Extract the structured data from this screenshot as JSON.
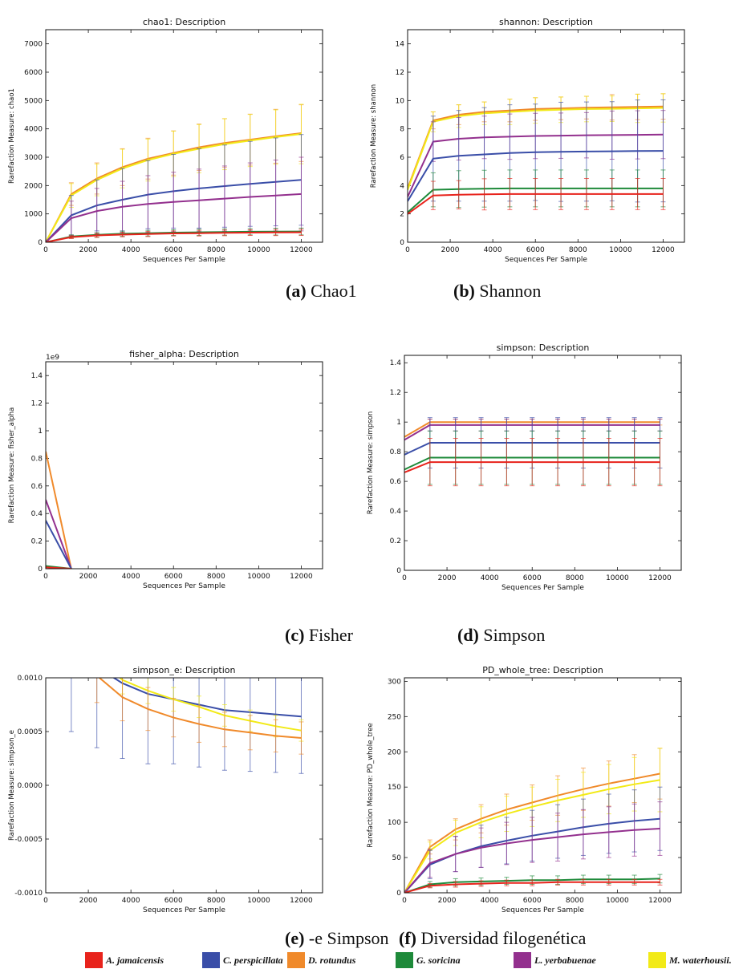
{
  "legend": [
    {
      "name": "A. jamaicensis",
      "color": "#e8231c"
    },
    {
      "name": "C. perspicillata",
      "color": "#3a4ea8"
    },
    {
      "name": "D. rotundus",
      "color": "#f08a2b"
    },
    {
      "name": "G. soricina",
      "color": "#1e8a3a"
    },
    {
      "name": "L. yerbabuenae",
      "color": "#93308e"
    },
    {
      "name": "M. waterhousii.",
      "color": "#f2ea17"
    }
  ],
  "captions": [
    {
      "tag": "(a)",
      "text": "Chao1"
    },
    {
      "tag": "(b)",
      "text": "Shannon"
    },
    {
      "tag": "(c)",
      "text": "Fisher"
    },
    {
      "tag": "(d)",
      "text": "Simpson"
    },
    {
      "tag": "(e)",
      "text": "-e Simpson"
    },
    {
      "tag": "(f)",
      "text": "Diversidad filogenética"
    }
  ],
  "chart_data": [
    {
      "type": "line",
      "title": "chao1: Description",
      "xlabel": "Sequences Per Sample",
      "ylabel": "Rarefaction Measure: chao1",
      "xlim": [
        0,
        13000
      ],
      "ylim": [
        0,
        7500
      ],
      "xticks": [
        0,
        2000,
        4000,
        6000,
        8000,
        10000,
        12000
      ],
      "yticks": [
        0,
        1000,
        2000,
        3000,
        4000,
        5000,
        6000,
        7000
      ],
      "x": [
        0,
        1200,
        2400,
        3600,
        4800,
        6000,
        7200,
        8400,
        9600,
        10800,
        12000
      ],
      "series": [
        {
          "name": "D. rotundus",
          "color": "#f08a2b",
          "values": [
            0,
            1700,
            2250,
            2650,
            2950,
            3150,
            3350,
            3500,
            3620,
            3740,
            3850
          ],
          "err": [
            0,
            400,
            550,
            650,
            720,
            780,
            820,
            860,
            900,
            950,
            1000
          ]
        },
        {
          "name": "M. waterhousii.",
          "color": "#f2ea17",
          "values": [
            0,
            1650,
            2200,
            2600,
            2900,
            3120,
            3300,
            3460,
            3590,
            3710,
            3820
          ],
          "err": [
            0,
            420,
            560,
            680,
            740,
            800,
            850,
            900,
            920,
            960,
            1050
          ]
        },
        {
          "name": "C. perspicillata",
          "color": "#3a4ea8",
          "values": [
            0,
            950,
            1300,
            1500,
            1680,
            1800,
            1900,
            1980,
            2060,
            2130,
            2200
          ],
          "err": [
            0,
            700,
            900,
            1100,
            1200,
            1300,
            1400,
            1450,
            1500,
            1550,
            1600
          ]
        },
        {
          "name": "L. yerbabuenae",
          "color": "#93308e",
          "values": [
            0,
            850,
            1100,
            1250,
            1350,
            1420,
            1480,
            1540,
            1600,
            1650,
            1700
          ],
          "err": [
            0,
            600,
            800,
            900,
            1000,
            1050,
            1100,
            1150,
            1200,
            1250,
            1300
          ]
        },
        {
          "name": "G. soricina",
          "color": "#1e8a3a",
          "values": [
            0,
            200,
            260,
            300,
            320,
            340,
            350,
            360,
            370,
            375,
            380
          ],
          "err": [
            0,
            60,
            80,
            90,
            100,
            100,
            110,
            110,
            110,
            120,
            120
          ]
        },
        {
          "name": "A. jamaicensis",
          "color": "#e8231c",
          "values": [
            0,
            180,
            240,
            270,
            290,
            310,
            320,
            330,
            340,
            345,
            350
          ],
          "err": [
            0,
            50,
            70,
            80,
            90,
            90,
            100,
            100,
            100,
            110,
            110
          ]
        }
      ]
    },
    {
      "type": "line",
      "title": "shannon: Description",
      "xlabel": "Sequences Per Sample",
      "ylabel": "Rarefaction Measure: shannon",
      "xlim": [
        0,
        13000
      ],
      "ylim": [
        0,
        15
      ],
      "xticks": [
        0,
        2000,
        4000,
        6000,
        8000,
        10000,
        12000
      ],
      "yticks": [
        0,
        2,
        4,
        6,
        8,
        10,
        12,
        14
      ],
      "x": [
        0,
        1200,
        2400,
        3600,
        4800,
        6000,
        7200,
        8400,
        9600,
        10800,
        12000
      ],
      "series": [
        {
          "name": "D. rotundus",
          "color": "#f08a2b",
          "values": [
            3.8,
            8.6,
            9.0,
            9.2,
            9.3,
            9.4,
            9.45,
            9.5,
            9.52,
            9.55,
            9.58
          ],
          "err": [
            0,
            0.6,
            0.7,
            0.7,
            0.8,
            0.8,
            0.8,
            0.8,
            0.9,
            0.9,
            0.9
          ]
        },
        {
          "name": "M. waterhousii.",
          "color": "#f2ea17",
          "values": [
            3.7,
            8.5,
            8.9,
            9.1,
            9.2,
            9.3,
            9.35,
            9.4,
            9.42,
            9.45,
            9.48
          ],
          "err": [
            0,
            0.7,
            0.8,
            0.8,
            0.9,
            0.9,
            0.9,
            0.9,
            0.9,
            1.0,
            1.0
          ]
        },
        {
          "name": "L. yerbabuenae",
          "color": "#93308e",
          "values": [
            3.2,
            7.1,
            7.3,
            7.4,
            7.45,
            7.5,
            7.52,
            7.55,
            7.56,
            7.58,
            7.6
          ],
          "err": [
            0,
            1.4,
            1.5,
            1.5,
            1.6,
            1.6,
            1.6,
            1.6,
            1.7,
            1.7,
            1.7
          ]
        },
        {
          "name": "C. perspicillata",
          "color": "#3a4ea8",
          "values": [
            2.9,
            5.9,
            6.1,
            6.2,
            6.3,
            6.35,
            6.38,
            6.4,
            6.42,
            6.44,
            6.45
          ],
          "err": [
            0,
            3.0,
            3.2,
            3.3,
            3.4,
            3.4,
            3.5,
            3.5,
            3.5,
            3.6,
            3.6
          ]
        },
        {
          "name": "G. soricina",
          "color": "#1e8a3a",
          "values": [
            2.1,
            3.7,
            3.75,
            3.78,
            3.8,
            3.8,
            3.8,
            3.8,
            3.8,
            3.8,
            3.8
          ],
          "err": [
            0,
            1.2,
            1.3,
            1.3,
            1.3,
            1.3,
            1.3,
            1.3,
            1.3,
            1.3,
            1.3
          ]
        },
        {
          "name": "A. jamaicensis",
          "color": "#e8231c",
          "values": [
            2.0,
            3.3,
            3.35,
            3.38,
            3.4,
            3.4,
            3.4,
            3.4,
            3.4,
            3.4,
            3.4
          ],
          "err": [
            0,
            1.0,
            1.0,
            1.1,
            1.1,
            1.1,
            1.1,
            1.1,
            1.1,
            1.1,
            1.1
          ]
        }
      ]
    },
    {
      "type": "line",
      "title": "fisher_alpha: Description",
      "xlabel": "Sequences Per Sample",
      "ylabel": "Rarefaction Measure: fisher_alpha",
      "offset_label": "1e9",
      "xlim": [
        0,
        13000
      ],
      "ylim": [
        0,
        1.5
      ],
      "xticks": [
        0,
        2000,
        4000,
        6000,
        8000,
        10000,
        12000
      ],
      "yticks": [
        0.0,
        0.2,
        0.4,
        0.6,
        0.8,
        1.0,
        1.2,
        1.4
      ],
      "x": [
        0,
        1200
      ],
      "series": [
        {
          "name": "D. rotundus",
          "color": "#f08a2b",
          "values": [
            0.85,
            0
          ],
          "err": [
            0,
            0
          ]
        },
        {
          "name": "L. yerbabuenae",
          "color": "#93308e",
          "values": [
            0.5,
            0
          ],
          "err": [
            0,
            0
          ]
        },
        {
          "name": "C. perspicillata",
          "color": "#3a4ea8",
          "values": [
            0.35,
            0
          ],
          "err": [
            0,
            0
          ]
        },
        {
          "name": "G. soricina",
          "color": "#1e8a3a",
          "values": [
            0.02,
            0
          ],
          "err": [
            0,
            0
          ]
        },
        {
          "name": "A. jamaicensis",
          "color": "#e8231c",
          "values": [
            0.01,
            0
          ],
          "err": [
            0,
            0
          ]
        }
      ]
    },
    {
      "type": "line",
      "title": "simpson: Description",
      "xlabel": "Sequences Per Sample",
      "ylabel": "Rarefaction Measure: simpson",
      "xlim": [
        0,
        13000
      ],
      "ylim": [
        0,
        1.45
      ],
      "xticks": [
        0,
        2000,
        4000,
        6000,
        8000,
        10000,
        12000
      ],
      "yticks": [
        0.0,
        0.2,
        0.4,
        0.6,
        0.8,
        1.0,
        1.2,
        1.4
      ],
      "x": [
        0,
        1200,
        2400,
        3600,
        4800,
        6000,
        7200,
        8400,
        9600,
        10800,
        12000
      ],
      "series": [
        {
          "name": "D. rotundus",
          "color": "#f08a2b",
          "values": [
            0.9,
            1.0,
            1.0,
            1.0,
            1.0,
            1.0,
            1.0,
            1.0,
            1.0,
            1.0,
            1.0
          ],
          "err": [
            0,
            0.02,
            0.02,
            0.02,
            0.02,
            0.02,
            0.02,
            0.02,
            0.02,
            0.02,
            0.02
          ]
        },
        {
          "name": "L. yerbabuenae",
          "color": "#93308e",
          "values": [
            0.88,
            0.98,
            0.98,
            0.98,
            0.98,
            0.98,
            0.98,
            0.98,
            0.98,
            0.98,
            0.98
          ],
          "err": [
            0,
            0.04,
            0.04,
            0.04,
            0.04,
            0.04,
            0.04,
            0.04,
            0.04,
            0.04,
            0.04
          ]
        },
        {
          "name": "C. perspicillata",
          "color": "#3a4ea8",
          "values": [
            0.78,
            0.86,
            0.86,
            0.86,
            0.86,
            0.86,
            0.86,
            0.86,
            0.86,
            0.86,
            0.86
          ],
          "err": [
            0,
            0.17,
            0.17,
            0.17,
            0.17,
            0.17,
            0.17,
            0.17,
            0.17,
            0.17,
            0.17
          ]
        },
        {
          "name": "G. soricina",
          "color": "#1e8a3a",
          "values": [
            0.68,
            0.76,
            0.76,
            0.76,
            0.76,
            0.76,
            0.76,
            0.76,
            0.76,
            0.76,
            0.76
          ],
          "err": [
            0,
            0.18,
            0.18,
            0.18,
            0.18,
            0.18,
            0.18,
            0.18,
            0.18,
            0.18,
            0.18
          ]
        },
        {
          "name": "A. jamaicensis",
          "color": "#e8231c",
          "values": [
            0.66,
            0.73,
            0.73,
            0.73,
            0.73,
            0.73,
            0.73,
            0.73,
            0.73,
            0.73,
            0.73
          ],
          "err": [
            0,
            0.16,
            0.16,
            0.16,
            0.16,
            0.16,
            0.16,
            0.16,
            0.16,
            0.16,
            0.16
          ]
        }
      ]
    },
    {
      "type": "line",
      "title": "simpson_e: Description",
      "xlabel": "Sequences Per Sample",
      "ylabel": "Rarefaction Measure: simpson_e",
      "xlim": [
        0,
        13000
      ],
      "ylim": [
        -0.001,
        0.001
      ],
      "xticks": [
        0,
        2000,
        4000,
        6000,
        8000,
        10000,
        12000
      ],
      "yticks": [
        -0.001,
        -0.0005,
        0.0,
        0.0005,
        0.001
      ],
      "ytick_labels": [
        "-0.0010",
        "-0.0005",
        "0.0000",
        "0.0005",
        "0.0010"
      ],
      "x": [
        1200,
        2400,
        3600,
        4800,
        6000,
        7200,
        8400,
        9600,
        10800,
        12000
      ],
      "series": [
        {
          "name": "C. perspicillata",
          "color": "#3a4ea8",
          "values": [
            0.0013,
            0.0011,
            0.00095,
            0.00085,
            0.0008,
            0.00075,
            0.0007,
            0.00068,
            0.00066,
            0.00064
          ],
          "err": [
            0.0008,
            0.00075,
            0.0007,
            0.00065,
            0.0006,
            0.00058,
            0.00056,
            0.00055,
            0.00054,
            0.00053
          ]
        },
        {
          "name": "M. waterhousii.",
          "color": "#f2ea17",
          "values": [
            0.0014,
            0.0012,
            0.00098,
            0.00088,
            0.0008,
            0.00073,
            0.00065,
            0.0006,
            0.00055,
            0.00051
          ],
          "err": [
            0.00015,
            0.00014,
            0.00013,
            0.00012,
            0.00011,
            0.0001,
            0.0001,
            0.0001,
            0.0001,
            0.0001
          ]
        },
        {
          "name": "D. rotundus",
          "color": "#f08a2b",
          "values": [
            0.0014,
            0.00102,
            0.00082,
            0.00071,
            0.00063,
            0.00057,
            0.00052,
            0.00049,
            0.00046,
            0.00044
          ],
          "err": [
            0.0003,
            0.00025,
            0.00022,
            0.0002,
            0.00018,
            0.00017,
            0.00016,
            0.00016,
            0.00015,
            0.00015
          ]
        }
      ]
    },
    {
      "type": "line",
      "title": "PD_whole_tree: Description",
      "xlabel": "Sequences Per Sample",
      "ylabel": "Rarefaction Measure: PD_whole_tree",
      "xlim": [
        0,
        13000
      ],
      "ylim": [
        0,
        305
      ],
      "xticks": [
        0,
        2000,
        4000,
        6000,
        8000,
        10000,
        12000
      ],
      "yticks": [
        0,
        50,
        100,
        150,
        200,
        250,
        300
      ],
      "x": [
        0,
        1200,
        2400,
        3600,
        4800,
        6000,
        7200,
        8400,
        9600,
        10800,
        12000
      ],
      "series": [
        {
          "name": "D. rotundus",
          "color": "#f08a2b",
          "values": [
            0,
            65,
            90,
            105,
            118,
            128,
            138,
            147,
            155,
            162,
            169
          ],
          "err": [
            0,
            10,
            15,
            20,
            22,
            25,
            28,
            30,
            32,
            34,
            36
          ]
        },
        {
          "name": "M. waterhousii.",
          "color": "#f2ea17",
          "values": [
            0,
            60,
            85,
            100,
            112,
            122,
            131,
            139,
            147,
            154,
            160
          ],
          "err": [
            0,
            12,
            18,
            22,
            25,
            28,
            30,
            32,
            35,
            38,
            45
          ]
        },
        {
          "name": "C. perspicillata",
          "color": "#3a4ea8",
          "values": [
            0,
            40,
            55,
            66,
            74,
            81,
            87,
            93,
            98,
            102,
            105
          ],
          "err": [
            0,
            20,
            25,
            30,
            33,
            36,
            38,
            40,
            42,
            44,
            45
          ]
        },
        {
          "name": "L. yerbabuenae",
          "color": "#93308e",
          "values": [
            0,
            42,
            55,
            64,
            70,
            75,
            79,
            83,
            86,
            89,
            91
          ],
          "err": [
            0,
            20,
            25,
            28,
            30,
            32,
            34,
            35,
            36,
            37,
            38
          ]
        },
        {
          "name": "G. soricina",
          "color": "#1e8a3a",
          "values": [
            0,
            12,
            15,
            16,
            17,
            18,
            18,
            19,
            19,
            19,
            20
          ],
          "err": [
            0,
            4,
            5,
            5,
            5,
            6,
            6,
            6,
            6,
            6,
            6
          ]
        },
        {
          "name": "A. jamaicensis",
          "color": "#e8231c",
          "values": [
            0,
            10,
            12,
            13,
            14,
            14,
            15,
            15,
            15,
            15,
            15
          ],
          "err": [
            0,
            3,
            4,
            4,
            4,
            4,
            4,
            4,
            4,
            4,
            4
          ]
        }
      ]
    }
  ]
}
